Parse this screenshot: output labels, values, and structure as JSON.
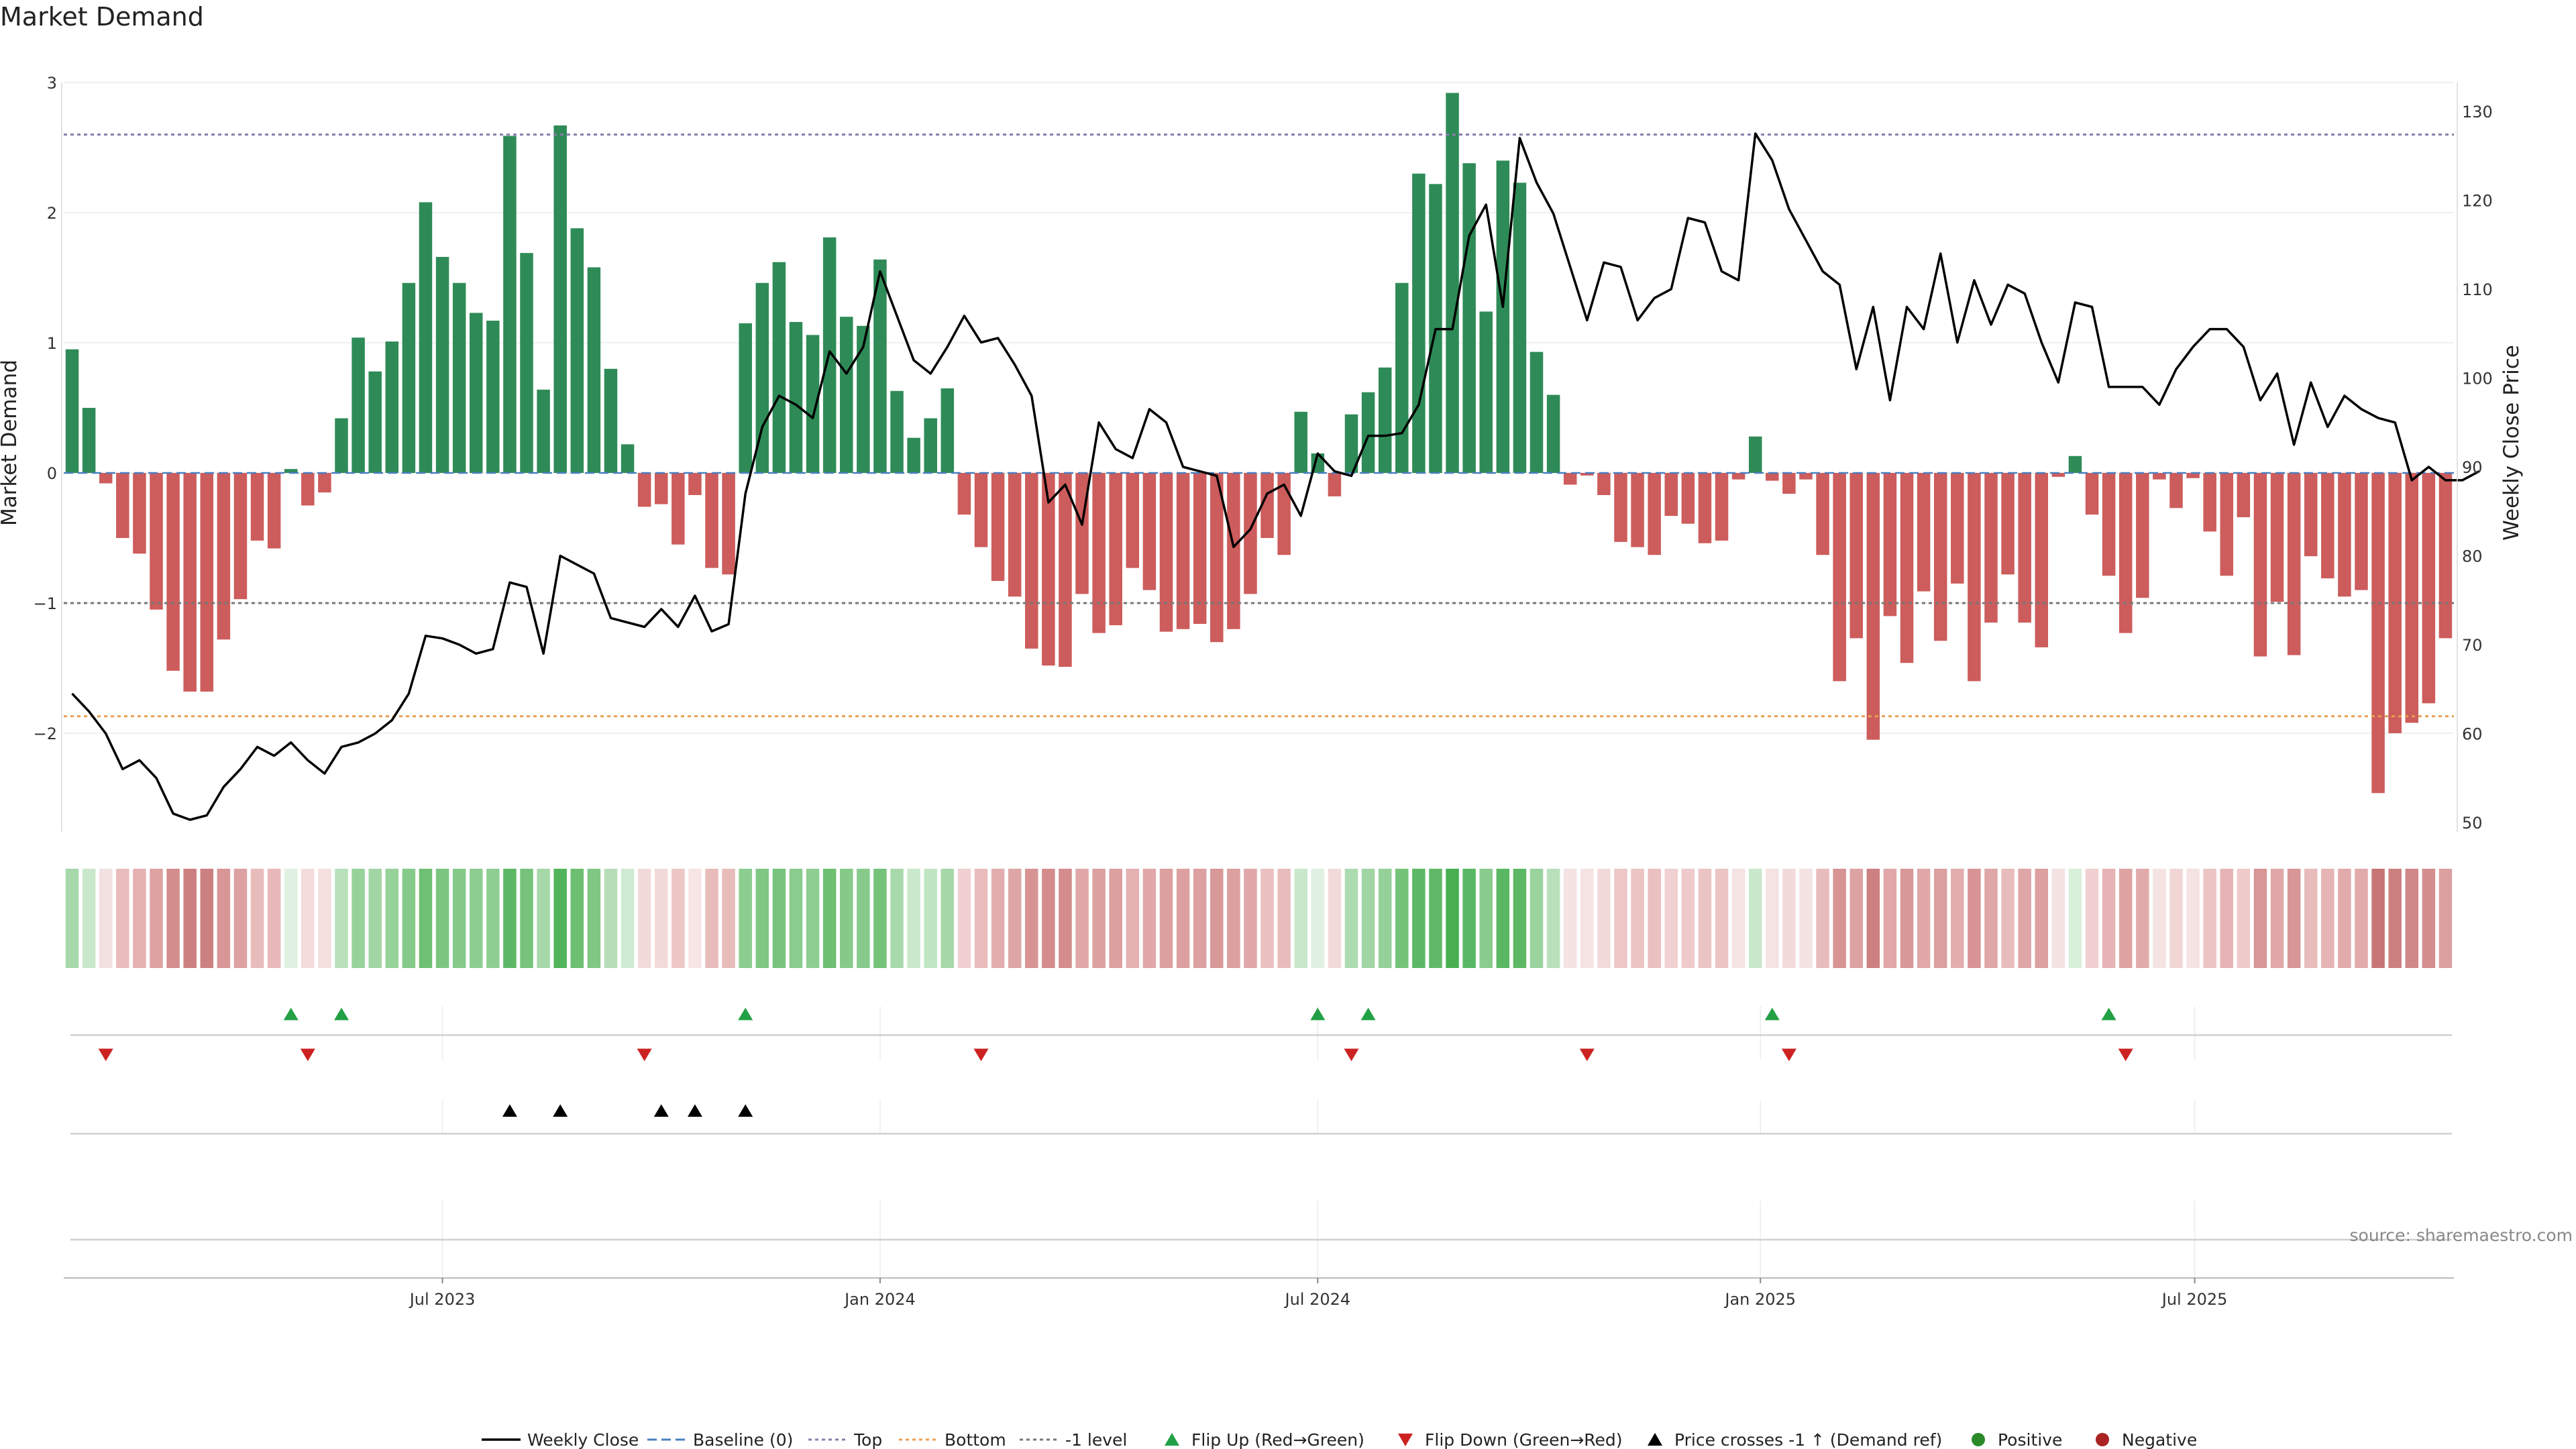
{
  "chart_data": {
    "type": "bar",
    "title": "Market Demand",
    "ylabel": "Market Demand",
    "y2label": "Weekly Close Price",
    "ylim": [
      -2.75,
      3.05
    ],
    "y2lim": [
      49,
      133
    ],
    "yticks": [
      3,
      2,
      1,
      0,
      -1,
      -2
    ],
    "ytick_labels": [
      "3",
      "2",
      "1",
      "0",
      "−1",
      "−2"
    ],
    "y2ticks": [
      130,
      120,
      110,
      100,
      90,
      80,
      70,
      60,
      50
    ],
    "x_ticks": [
      {
        "index": 22,
        "label": "Jul 2023"
      },
      {
        "index": 48,
        "label": "Jan 2024"
      },
      {
        "index": 74,
        "label": "Jul 2024"
      },
      {
        "index": 100.3,
        "label": "Jan 2025"
      },
      {
        "index": 126.1,
        "label": "Jul 2025"
      }
    ],
    "reference_lines": {
      "top": 2.6,
      "bottom": -1.87,
      "minus_one": -1,
      "baseline": 0
    },
    "demand": [
      0.95,
      0.5,
      -0.08,
      -0.5,
      -0.62,
      -1.05,
      -1.52,
      -1.68,
      -1.68,
      -1.28,
      -0.97,
      -0.52,
      -0.58,
      0.03,
      -0.25,
      -0.15,
      0.42,
      1.04,
      0.78,
      1.01,
      1.46,
      2.08,
      1.66,
      1.46,
      1.23,
      1.17,
      2.59,
      1.69,
      0.64,
      2.67,
      1.88,
      1.58,
      0.8,
      0.22,
      -0.26,
      -0.24,
      -0.55,
      -0.17,
      -0.73,
      -0.78,
      1.15,
      1.46,
      1.62,
      1.16,
      1.06,
      1.81,
      1.2,
      1.13,
      1.64,
      0.63,
      0.27,
      0.42,
      0.65,
      -0.32,
      -0.57,
      -0.83,
      -0.95,
      -1.35,
      -1.48,
      -1.49,
      -0.93,
      -1.23,
      -1.17,
      -0.73,
      -0.9,
      -1.22,
      -1.2,
      -1.16,
      -1.3,
      -1.2,
      -0.93,
      -0.5,
      -0.63,
      0.47,
      0.15,
      -0.18,
      0.45,
      0.62,
      0.81,
      1.46,
      2.3,
      2.22,
      2.92,
      2.38,
      1.24,
      2.4,
      2.23,
      0.93,
      0.6,
      -0.09,
      -0.02,
      -0.17,
      -0.53,
      -0.57,
      -0.63,
      -0.33,
      -0.39,
      -0.54,
      -0.52,
      -0.05,
      0.28,
      -0.06,
      -0.16,
      -0.05,
      -0.63,
      -1.6,
      -1.27,
      -2.05,
      -1.1,
      -1.46,
      -0.91,
      -1.29,
      -0.85,
      -1.6,
      -1.15,
      -0.78,
      -1.15,
      -1.34,
      -0.03,
      0.13,
      -0.32,
      -0.79,
      -1.23,
      -0.96,
      -0.05,
      -0.27,
      -0.04,
      -0.45,
      -0.79,
      -0.34,
      -1.41,
      -0.99,
      -1.4,
      -0.64,
      -0.81,
      -0.95,
      -0.9,
      -2.46,
      -2.0,
      -1.92,
      -1.77,
      -1.27
    ],
    "close": [
      64.5,
      62.5,
      60,
      56,
      57,
      55,
      51,
      50.3,
      50.8,
      54,
      56,
      58.5,
      57.5,
      59,
      57,
      55.5,
      58.5,
      59,
      60,
      61.5,
      64.5,
      71,
      70.7,
      70,
      69,
      69.5,
      77,
      76.5,
      69,
      80,
      79,
      78,
      73,
      72.5,
      72,
      74,
      72,
      75.5,
      71.5,
      72.3,
      87,
      94.5,
      98,
      97,
      95.5,
      103,
      100.5,
      103.5,
      112,
      107,
      102,
      100.5,
      103.5,
      107,
      104,
      104.5,
      101.5,
      98,
      86,
      88,
      83.5,
      95,
      92,
      91,
      96.5,
      95,
      90,
      89.5,
      89,
      81,
      83,
      87,
      88,
      84.5,
      91.5,
      89.5,
      89,
      93.5,
      93.5,
      93.8,
      97,
      105.5,
      105.5,
      116,
      119.5,
      108,
      127,
      122,
      118.5,
      112.5,
      106.5,
      113,
      112.5,
      106.5,
      109,
      110,
      118,
      117.5,
      112,
      111,
      127.5,
      124.5,
      119,
      115.5,
      112,
      110.5,
      101,
      108,
      97.5,
      108,
      105.5,
      114,
      104,
      111,
      106,
      110.5,
      109.5,
      104,
      99.5,
      108.5,
      108,
      99,
      99,
      99,
      97,
      101,
      103.5,
      105.5,
      105.5,
      103.5,
      97.5,
      100.5,
      92.5,
      99.5,
      94.5,
      98,
      96.5,
      95.5,
      95,
      88.5,
      90,
      88.5,
      88.5,
      89.5
    ],
    "strip_colors": [
      "#a6d8a9",
      "#c9e8cb",
      "#f3e0e0",
      "#eabcbc",
      "#e5b1b1",
      "#dea2a2",
      "#d48e8e",
      "#cd8080",
      "#cd8080",
      "#d89696",
      "#dea1a1",
      "#e9bcbc",
      "#e9b8b8",
      "#e0f0e1",
      "#f4dcdc",
      "#f5e0e0",
      "#b8e0bb",
      "#97d29b",
      "#a1d5a4",
      "#97d29b",
      "#85ca89",
      "#6fc074",
      "#7cc580",
      "#85ca89",
      "#8ecd91",
      "#8fce93",
      "#5db865",
      "#77c37c",
      "#a6d8a9",
      "#52b45b",
      "#6dbf72",
      "#80c784",
      "#b6ddb8",
      "#cfebd1",
      "#f3dada",
      "#f3dada",
      "#edc6c6",
      "#f7e4e4",
      "#e9bcbc",
      "#e9bcbc",
      "#8ccd90",
      "#7fc783",
      "#78c47d",
      "#8acb8e",
      "#8fce93",
      "#6dbf72",
      "#85ca89",
      "#88ca8c",
      "#75c379",
      "#a8d9ab",
      "#cae9cc",
      "#c0e5c2",
      "#a6d8a9",
      "#f0d0d0",
      "#eabcbc",
      "#e4adad",
      "#dea6a6",
      "#d89494",
      "#d48c8c",
      "#d48c8c",
      "#e0a8a8",
      "#dca0a0",
      "#dca0a0",
      "#e4b0b0",
      "#e0a8a8",
      "#dca0a0",
      "#dca0a0",
      "#dca0a0",
      "#d89898",
      "#dca0a0",
      "#e0a8a8",
      "#ebc0c0",
      "#e9bcbc",
      "#c9e8cb",
      "#e0f0e1",
      "#f3dada",
      "#acdbaf",
      "#a1d5a4",
      "#94d098",
      "#75c379",
      "#5cb864",
      "#60b968",
      "#47af50",
      "#5ab763",
      "#8acb8e",
      "#5ab763",
      "#5cb864",
      "#9bd39e",
      "#b8e0bb",
      "#f5e2e2",
      "#f5e2e2",
      "#f3dada",
      "#edc6c6",
      "#ecc4c4",
      "#ebc0c0",
      "#f0d0d0",
      "#efcaca",
      "#ecc4c4",
      "#ecc4c4",
      "#f5e2e2",
      "#c9e8cb",
      "#f5e2e2",
      "#f3dada",
      "#f5e2e2",
      "#e9bcbc",
      "#d89494",
      "#dea2a2",
      "#cd8080",
      "#e0a8a8",
      "#d89898",
      "#e0a8a8",
      "#dca0a0",
      "#e4adad",
      "#d89494",
      "#dea6a6",
      "#e9bcbc",
      "#dea6a6",
      "#dca0a0",
      "#f5e2e2",
      "#d8efda",
      "#f0d0d0",
      "#e6b4b4",
      "#dea2a2",
      "#e2abab",
      "#f5e2e2",
      "#f2d6d6",
      "#f5e2e2",
      "#ecc4c4",
      "#e6b4b4",
      "#efcaca",
      "#d89696",
      "#e0a8a8",
      "#d89696",
      "#e9bcbc",
      "#e6b4b4",
      "#e2abab",
      "#e2abab",
      "#c77676",
      "#cd8080",
      "#d08888",
      "#d48e8e",
      "#dca0a0"
    ],
    "flip_up": [
      13,
      16,
      40,
      74,
      77,
      101,
      121
    ],
    "flip_down": [
      2,
      14,
      34,
      54,
      76,
      90,
      102,
      122
    ],
    "price_cross": [
      26,
      29,
      35,
      37,
      40
    ],
    "colors": {
      "positive": "#2e8b57",
      "negative": "#cd5c5c",
      "line": "#000000",
      "top": "#8b7bab",
      "bottom": "#e8a050",
      "minus_one": "#777777",
      "flip_up": "#22a045",
      "flip_down": "#cc2222",
      "cross": "#000000",
      "pos_dot": "#2a8a2a",
      "neg_dot": "#aa2222"
    },
    "legend": [
      {
        "key": "line",
        "label": "Weekly Close"
      },
      {
        "key": "baseline",
        "label": "Baseline (0)"
      },
      {
        "key": "top",
        "label": "Top"
      },
      {
        "key": "bottom",
        "label": "Bottom"
      },
      {
        "key": "minus_one",
        "label": "-1 level"
      },
      {
        "key": "flip_up",
        "label": "Flip Up (Red→Green)"
      },
      {
        "key": "flip_down",
        "label": "Flip Down (Green→Red)"
      },
      {
        "key": "cross",
        "label": "Price crosses -1 ↑ (Demand ref)"
      },
      {
        "key": "pos_dot",
        "label": "Positive"
      },
      {
        "key": "neg_dot",
        "label": "Negative"
      }
    ],
    "legend_placement": "bottom-center",
    "source": "source: sharemaestro.com",
    "grid": true
  }
}
